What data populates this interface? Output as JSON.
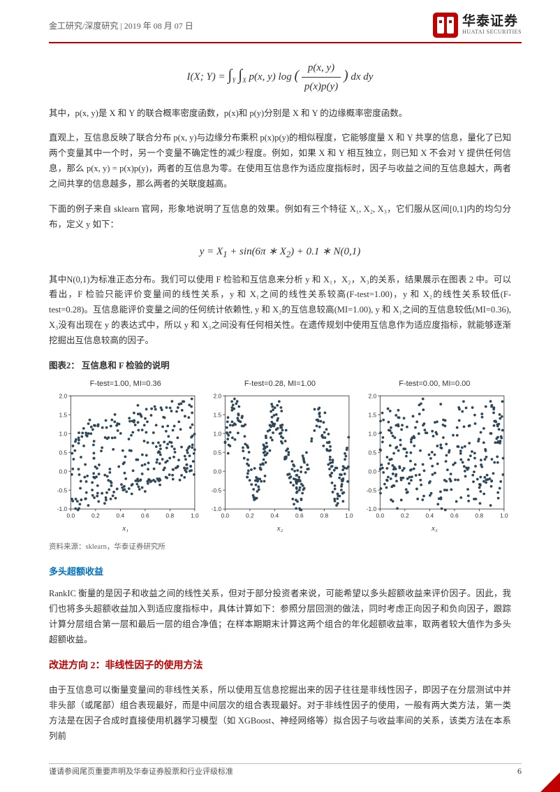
{
  "header": {
    "breadcrumb": "金工研究/深度研究 | 2019 年 08 月 07 日",
    "logo_cn": "华泰证券",
    "logo_en": "HUATAI SECURITIES",
    "logo_color": "#c00000"
  },
  "formulas": {
    "mi": "I(X; Y) = ∫∫ p(x, y) log ( p(x, y) / (p(x)p(y)) ) dx dy",
    "y_eq": "y = X₁ + sin(6π * X₂) + 0.1 * N(0,1)"
  },
  "paras": {
    "p1": "其中，p(x, y)是 X 和 Y 的联合概率密度函数，p(x)和 p(y)分别是 X 和 Y 的边缘概率密度函数。",
    "p2": "直观上，互信息反映了联合分布 p(x, y)与边缘分布乘积 p(x)p(y)的相似程度，它能够度量 X 和 Y 共享的信息，量化了已知两个变量其中一个时，另一个变量不确定性的减少程度。例如，如果 X 和 Y 相互独立，则已知 X 不会对 Y 提供任何信息，那么 p(x, y) = p(x)p(y)，两者的互信息为零。在使用互信息作为适应度指标时，因子与收益之间的互信息越大，两者之间共享的信息越多，那么两者的关联度越高。",
    "p3": "下面的例子来自 sklearn 官网，形象地说明了互信息的效果。例如有三个特征 X₁, X₂, X₃，它们服从区间[0,1]内的均匀分布，定义 y 如下：",
    "p4": "其中N(0,1)为标准正态分布。我们可以使用 F 检验和互信息来分析 y 和 X₁，X₂，X₃的关系，结果展示在图表 2 中。可以看出，F 检验只能评价变量间的线性关系，y 和 X₁之间的线性关系较高(F-test=1.00)，y 和 X₂的线性关系较低(F-test=0.28)。互信息能评价变量之间的任何统计依赖性, y 和 X₂的互信息较高(MI=1.00), y 和 X₁之间的互信息较低(MI=0.36), X₃没有出现在 y 的表达式中，所以 y 和 X₃之间没有任何相关性。在遗传规划中使用互信息作为适应度指标，就能够逐渐挖掘出互信息较高的因子。",
    "p5": "RankIC 衡量的是因子和收益之间的线性关系，但对于部分投资者来说，可能希望以多头超额收益来评价因子。因此，我们也将多头超额收益加入到适应度指标中，具体计算如下：参照分层回测的做法，同时考虑正向因子和负向因子，跟踪计算分层组合第一层和最后一层的组合净值；在样本期期末计算这两个组合的年化超额收益率，取两者较大值作为多头超额收益。",
    "p6": "由于互信息可以衡量变量间的非线性关系，所以使用互信息挖掘出来的因子往往是非线性因子，即因子在分层测试中并非头部（或尾部）组合表现最好，而是中间层次的组合表现最好。对于非线性因子的使用，一般有两大类方法，第一类方法是在因子合成时直接使用机器学习模型（如 XGBoost、神经网络等）拟合因子与收益率间的关系，该类方法在本系列前"
  },
  "fig": {
    "title": "图表2： 互信息和 F 检验的说明",
    "source": "资料来源：sklearn，华泰证券研究所",
    "panels": [
      {
        "title": "F-test=1.00, MI=0.36",
        "xlabel": "x₁"
      },
      {
        "title": "F-test=0.28, MI=1.00",
        "xlabel": "x₂"
      },
      {
        "title": "F-test=0.00, MI=0.00",
        "xlabel": "x₃"
      }
    ],
    "point_color": "#2f4858",
    "axis_color": "#333333",
    "ylim": [
      -1.0,
      2.0
    ],
    "yticks": [
      "2.0",
      "1.5",
      "1.0",
      "0.5",
      "0.0",
      "-0.5",
      "-1.0"
    ],
    "xlim": [
      0.0,
      1.0
    ],
    "xticks": [
      "0.0",
      "0.2",
      "0.4",
      "0.6",
      "0.8",
      "1.0"
    ]
  },
  "headings": {
    "blue1": "多头超额收益",
    "red1": "改进方向 2：非线性因子的使用方法"
  },
  "footer": {
    "disclaimer": "谨请参阅尾页重要声明及华泰证券股票和行业评级标准",
    "page": "6"
  }
}
